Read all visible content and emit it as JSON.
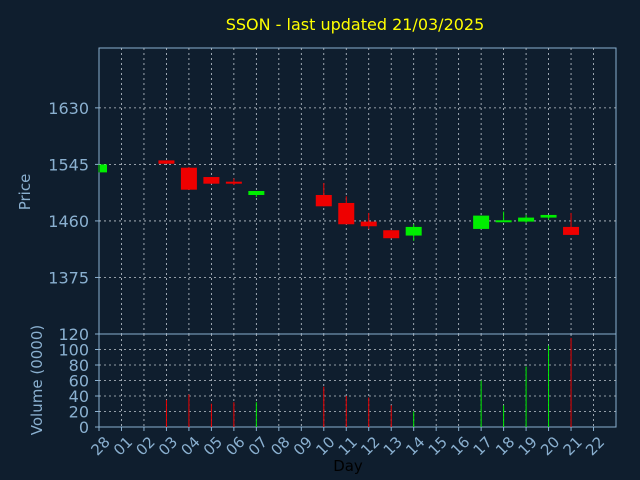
{
  "chart_data": {
    "type": "candlestick",
    "title": "SSON - last updated 21/03/2025",
    "xlabel": "Day",
    "price_panel": {
      "ylabel": "Price",
      "ylim": [
        1290,
        1720
      ],
      "yticks": [
        1375,
        1460,
        1545,
        1630
      ],
      "grid": true
    },
    "volume_panel": {
      "ylabel": "Volume (0000)",
      "ylim": [
        0,
        120
      ],
      "yticks": [
        0,
        20,
        40,
        60,
        80,
        100,
        120
      ],
      "grid": true
    },
    "x_tick_labels": [
      "28",
      "01",
      "02",
      "03",
      "04",
      "05",
      "06",
      "07",
      "08",
      "09",
      "10",
      "11",
      "12",
      "13",
      "14",
      "15",
      "16",
      "17",
      "18",
      "19",
      "20",
      "21",
      "22"
    ],
    "candles": [
      {
        "x": "28",
        "open": 1533,
        "close": 1545,
        "high": 1545,
        "low": 1533,
        "volume": 0,
        "dir": "up"
      },
      {
        "x": "03",
        "open": 1551,
        "close": 1546,
        "high": 1551,
        "low": 1546,
        "volume": 35,
        "dir": "down"
      },
      {
        "x": "04",
        "open": 1540,
        "close": 1507,
        "high": 1541,
        "low": 1507,
        "volume": 42,
        "dir": "down"
      },
      {
        "x": "05",
        "open": 1526,
        "close": 1516,
        "high": 1526,
        "low": 1516,
        "volume": 30,
        "dir": "down"
      },
      {
        "x": "06",
        "open": 1519,
        "close": 1516,
        "high": 1524,
        "low": 1514,
        "volume": 32,
        "dir": "down"
      },
      {
        "x": "07",
        "open": 1499,
        "close": 1505,
        "high": 1505,
        "low": 1496,
        "volume": 32,
        "dir": "up"
      },
      {
        "x": "10",
        "open": 1499,
        "close": 1482,
        "high": 1517,
        "low": 1482,
        "volume": 52,
        "dir": "down"
      },
      {
        "x": "11",
        "open": 1487,
        "close": 1455,
        "high": 1497,
        "low": 1455,
        "volume": 40,
        "dir": "down"
      },
      {
        "x": "12",
        "open": 1459,
        "close": 1452,
        "high": 1472,
        "low": 1448,
        "volume": 38,
        "dir": "down"
      },
      {
        "x": "13",
        "open": 1446,
        "close": 1434,
        "high": 1446,
        "low": 1434,
        "volume": 28,
        "dir": "down"
      },
      {
        "x": "14",
        "open": 1438,
        "close": 1451,
        "high": 1455,
        "low": 1430,
        "volume": 20,
        "dir": "up"
      },
      {
        "x": "17",
        "open": 1448,
        "close": 1468,
        "high": 1468,
        "low": 1448,
        "volume": 60,
        "dir": "up"
      },
      {
        "x": "18",
        "open": 1459,
        "close": 1461,
        "high": 1474,
        "low": 1459,
        "volume": 28,
        "dir": "up"
      },
      {
        "x": "19",
        "open": 1459,
        "close": 1465,
        "high": 1469,
        "low": 1457,
        "volume": 78,
        "dir": "up"
      },
      {
        "x": "20",
        "open": 1465,
        "close": 1469,
        "high": 1469,
        "low": 1462,
        "volume": 105,
        "dir": "up"
      },
      {
        "x": "21",
        "open": 1451,
        "close": 1439,
        "high": 1472,
        "low": 1439,
        "volume": 115,
        "dir": "down"
      }
    ],
    "colors": {
      "up": "#00ee00",
      "down": "#ee0000",
      "background": "#0f1e2e",
      "axes": "#8ab0d0",
      "grid": "#c0c8d0",
      "title": "#ffff00"
    }
  }
}
